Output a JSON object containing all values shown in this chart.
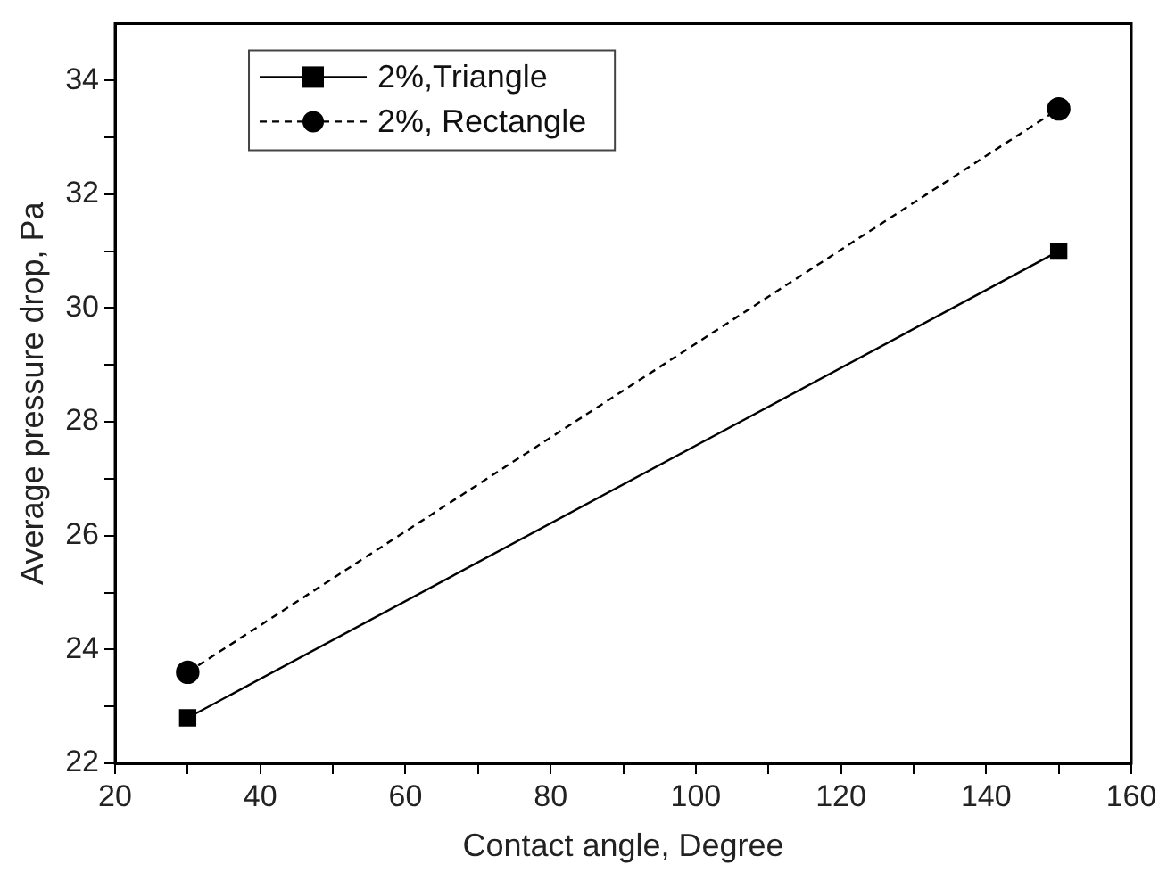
{
  "chart_data": {
    "type": "line",
    "xlabel": "Contact angle, Degree",
    "ylabel": "Average pressure drop, Pa",
    "x": [
      30,
      150
    ],
    "series": [
      {
        "name": "2%,Triangle",
        "color": "#000000",
        "values": [
          22.8,
          31.0
        ],
        "marker": "square",
        "line_style": "solid"
      },
      {
        "name": "2%, Rectangle",
        "color": "#000000",
        "values": [
          23.6,
          33.5
        ],
        "marker": "circle",
        "line_style": "dashed"
      }
    ],
    "xlim": [
      20,
      160
    ],
    "xticks": [
      20,
      {
        "value": 30,
        "label": null
      },
      40,
      {
        "value": 50,
        "label": null
      },
      60,
      {
        "value": 70,
        "label": null
      },
      80,
      {
        "value": 90,
        "label": null
      },
      100,
      {
        "value": 110,
        "label": null
      },
      120,
      {
        "value": 130,
        "label": null
      },
      140,
      {
        "value": 150,
        "label": null
      },
      160
    ],
    "ylim": [
      22,
      35
    ],
    "yticks": [
      22,
      {
        "value": 23,
        "label": null
      },
      24,
      {
        "value": 25,
        "label": null
      },
      26,
      {
        "value": 27,
        "label": null
      },
      28,
      {
        "value": 29,
        "label": null
      },
      30,
      {
        "value": 31,
        "label": null
      },
      32,
      {
        "value": 33,
        "label": null
      },
      34
    ],
    "grid": false,
    "legend": "top left"
  }
}
